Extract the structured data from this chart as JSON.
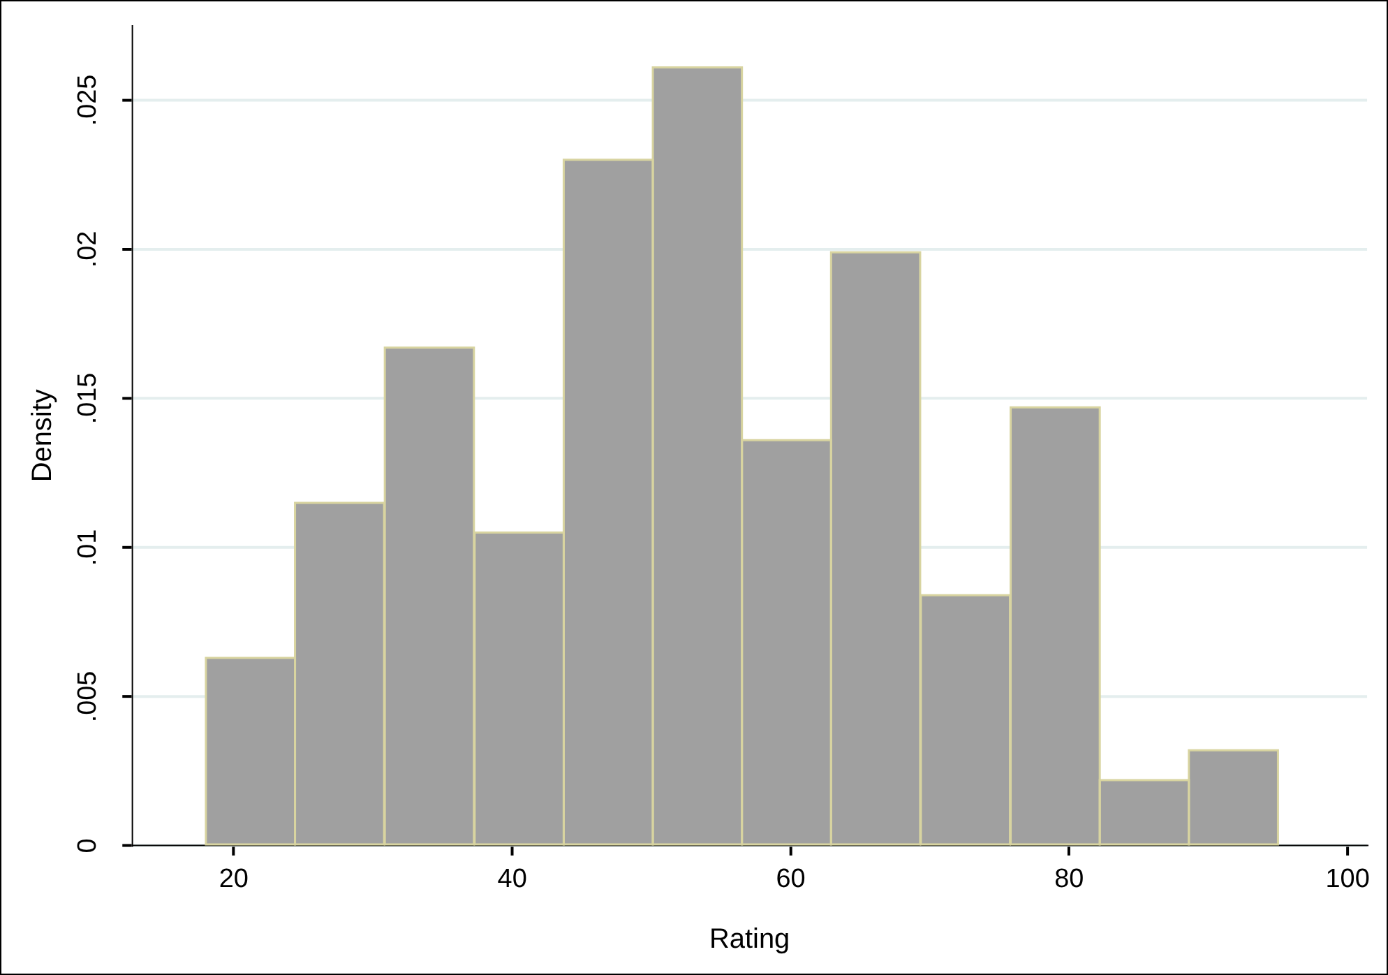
{
  "chart_data": {
    "type": "histogram",
    "xlabel": "Rating",
    "ylabel": "Density",
    "bins": [
      18,
      24.4,
      30.8,
      37.3,
      43.7,
      50.1,
      56.5,
      62.9,
      69.3,
      75.8,
      82.2,
      88.6,
      95
    ],
    "values": [
      0.0063,
      0.0115,
      0.0167,
      0.0105,
      0.023,
      0.0261,
      0.0136,
      0.0199,
      0.0084,
      0.0147,
      0.0022,
      0.0032
    ],
    "color": "#a0a0a0",
    "xlim": [
      12.7,
      101.4
    ],
    "xticks": [
      20,
      40,
      60,
      80,
      100
    ],
    "ylim": [
      0,
      0.0275
    ],
    "yticks": [
      0,
      {
        "value": 0.005,
        "label": ".005"
      },
      {
        "value": 0.01,
        "label": ".01"
      },
      {
        "value": 0.015,
        "label": ".015"
      },
      {
        "value": 0.02,
        "label": ".02"
      },
      {
        "value": 0.025,
        "label": ".025"
      }
    ],
    "grid": "y"
  }
}
